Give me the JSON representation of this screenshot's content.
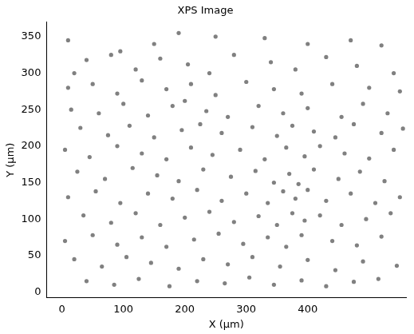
{
  "chart_data": {
    "type": "scatter",
    "title": "XPS Image",
    "x_label": "X (µm)",
    "y_label": "Y (µm)",
    "xlim": [
      -25,
      560
    ],
    "xticks": [
      0,
      100,
      200,
      300,
      400
    ],
    "ylim": [
      -8,
      370
    ],
    "yticks": [
      0,
      50,
      100,
      150,
      200,
      250,
      300,
      350
    ],
    "grid": false,
    "color": "#808080",
    "marker": "circle",
    "x": [
      10,
      95,
      150,
      190,
      250,
      330,
      400,
      470,
      520,
      20,
      40,
      80,
      120,
      160,
      205,
      240,
      280,
      340,
      380,
      430,
      480,
      540,
      10,
      50,
      90,
      130,
      170,
      210,
      250,
      300,
      345,
      390,
      440,
      500,
      550,
      15,
      60,
      100,
      140,
      180,
      200,
      235,
      270,
      320,
      360,
      400,
      455,
      490,
      530,
      30,
      75,
      110,
      150,
      195,
      225,
      260,
      310,
      350,
      375,
      410,
      445,
      475,
      520,
      555,
      5,
      45,
      90,
      130,
      170,
      210,
      245,
      290,
      330,
      365,
      395,
      420,
      460,
      500,
      540,
      25,
      70,
      115,
      155,
      190,
      230,
      275,
      315,
      345,
      370,
      385,
      410,
      450,
      485,
      525,
      10,
      55,
      95,
      140,
      180,
      220,
      260,
      300,
      335,
      360,
      380,
      400,
      430,
      470,
      510,
      550,
      35,
      80,
      120,
      160,
      200,
      240,
      280,
      320,
      350,
      375,
      395,
      420,
      455,
      495,
      535,
      5,
      50,
      90,
      130,
      170,
      215,
      255,
      295,
      335,
      365,
      390,
      440,
      480,
      520,
      20,
      65,
      105,
      145,
      190,
      230,
      270,
      310,
      355,
      400,
      445,
      490,
      545,
      40,
      85,
      125,
      175,
      220,
      265,
      305,
      345,
      390,
      430,
      475,
      515
    ],
    "values": [
      345,
      330,
      340,
      355,
      350,
      348,
      340,
      345,
      338,
      300,
      318,
      325,
      305,
      320,
      312,
      300,
      325,
      315,
      305,
      322,
      310,
      300,
      280,
      285,
      272,
      290,
      278,
      285,
      270,
      288,
      278,
      272,
      285,
      280,
      275,
      250,
      245,
      258,
      242,
      255,
      262,
      248,
      240,
      255,
      245,
      252,
      240,
      258,
      245,
      225,
      215,
      228,
      212,
      222,
      230,
      218,
      226,
      214,
      228,
      220,
      212,
      230,
      218,
      224,
      195,
      185,
      200,
      190,
      182,
      198,
      188,
      195,
      182,
      198,
      186,
      200,
      190,
      183,
      195,
      165,
      155,
      170,
      160,
      152,
      168,
      158,
      166,
      150,
      162,
      148,
      168,
      155,
      165,
      152,
      130,
      138,
      122,
      135,
      128,
      140,
      125,
      135,
      122,
      138,
      128,
      140,
      125,
      135,
      122,
      130,
      105,
      95,
      108,
      92,
      102,
      110,
      96,
      104,
      92,
      108,
      98,
      105,
      92,
      100,
      108,
      70,
      78,
      65,
      75,
      62,
      72,
      80,
      66,
      75,
      62,
      78,
      70,
      64,
      76,
      45,
      35,
      48,
      40,
      32,
      45,
      38,
      48,
      35,
      44,
      30,
      42,
      36,
      15,
      10,
      18,
      8,
      15,
      12,
      20,
      10,
      16,
      8,
      14,
      18
    ]
  }
}
